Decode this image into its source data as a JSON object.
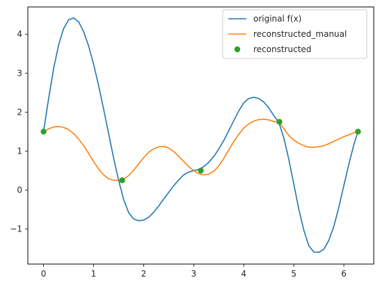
{
  "chart_data": {
    "type": "line",
    "title": "",
    "xlabel": "",
    "ylabel": "",
    "xlim": [
      -0.314,
      6.597
    ],
    "ylim": [
      -1.9,
      4.7
    ],
    "xticks": [
      0,
      1,
      2,
      3,
      4,
      5,
      6
    ],
    "yticks": [
      -1,
      0,
      1,
      2,
      3,
      4
    ],
    "grid": false,
    "legend_position": "top-right",
    "series": [
      {
        "name": "original f(x)",
        "kind": "line",
        "color": "#1f77b4",
        "x": [
          0,
          0.1,
          0.2,
          0.3,
          0.4,
          0.5,
          0.6,
          0.7,
          0.8,
          0.9,
          1.0,
          1.1,
          1.2,
          1.3,
          1.4,
          1.5,
          1.6,
          1.7,
          1.8,
          1.9,
          2.0,
          2.1,
          2.2,
          2.3,
          2.4,
          2.5,
          2.6,
          2.7,
          2.8,
          2.9,
          3.0,
          3.1,
          3.2,
          3.3,
          3.4,
          3.5,
          3.6,
          3.7,
          3.8,
          3.9,
          4.0,
          4.1,
          4.2,
          4.3,
          4.4,
          4.5,
          4.6,
          4.7,
          4.8,
          4.9,
          5.0,
          5.1,
          5.2,
          5.3,
          5.4,
          5.5,
          5.6,
          5.7,
          5.8,
          5.9,
          6.0,
          6.1,
          6.2,
          6.283
        ],
        "y": [
          1.5,
          2.34,
          3.11,
          3.72,
          4.14,
          4.37,
          4.42,
          4.32,
          4.07,
          3.7,
          3.23,
          2.68,
          2.08,
          1.45,
          0.82,
          0.25,
          -0.24,
          -0.58,
          -0.74,
          -0.79,
          -0.77,
          -0.7,
          -0.57,
          -0.41,
          -0.23,
          -0.06,
          0.11,
          0.26,
          0.39,
          0.46,
          0.5,
          0.53,
          0.6,
          0.71,
          0.86,
          1.05,
          1.27,
          1.52,
          1.78,
          2.03,
          2.24,
          2.35,
          2.38,
          2.35,
          2.26,
          2.11,
          1.91,
          1.74,
          1.34,
          0.79,
          0.15,
          -0.49,
          -1.03,
          -1.43,
          -1.59,
          -1.6,
          -1.52,
          -1.29,
          -0.93,
          -0.44,
          0.12,
          0.66,
          1.17,
          1.5
        ]
      },
      {
        "name": "reconstructed_manual",
        "kind": "line",
        "color": "#ff7f0e",
        "x": [
          0,
          0.1,
          0.2,
          0.3,
          0.4,
          0.5,
          0.6,
          0.7,
          0.8,
          0.9,
          1.0,
          1.1,
          1.2,
          1.3,
          1.4,
          1.5,
          1.6,
          1.7,
          1.8,
          1.9,
          2.0,
          2.1,
          2.2,
          2.3,
          2.4,
          2.5,
          2.6,
          2.7,
          2.8,
          2.9,
          3.0,
          3.1,
          3.2,
          3.3,
          3.4,
          3.5,
          3.6,
          3.7,
          3.8,
          3.9,
          4.0,
          4.1,
          4.2,
          4.3,
          4.4,
          4.5,
          4.6,
          4.7,
          4.8,
          4.9,
          5.0,
          5.1,
          5.2,
          5.3,
          5.4,
          5.5,
          5.6,
          5.7,
          5.8,
          5.9,
          6.0,
          6.1,
          6.2,
          6.283
        ],
        "y": [
          1.5,
          1.57,
          1.62,
          1.63,
          1.61,
          1.55,
          1.45,
          1.31,
          1.14,
          0.94,
          0.73,
          0.54,
          0.39,
          0.29,
          0.25,
          0.25,
          0.28,
          0.37,
          0.51,
          0.67,
          0.83,
          0.97,
          1.06,
          1.11,
          1.12,
          1.08,
          0.99,
          0.87,
          0.73,
          0.6,
          0.5,
          0.42,
          0.39,
          0.41,
          0.48,
          0.62,
          0.81,
          1.03,
          1.24,
          1.43,
          1.59,
          1.7,
          1.77,
          1.81,
          1.82,
          1.8,
          1.76,
          1.74,
          1.58,
          1.4,
          1.28,
          1.2,
          1.14,
          1.1,
          1.1,
          1.11,
          1.14,
          1.19,
          1.25,
          1.31,
          1.37,
          1.42,
          1.47,
          1.5
        ]
      },
      {
        "name": "reconstructed",
        "kind": "scatter",
        "color": "#2ca02c",
        "x": [
          0,
          1.571,
          3.142,
          4.712,
          6.283
        ],
        "y": [
          1.5,
          0.25,
          0.5,
          1.75,
          1.5
        ]
      }
    ]
  }
}
